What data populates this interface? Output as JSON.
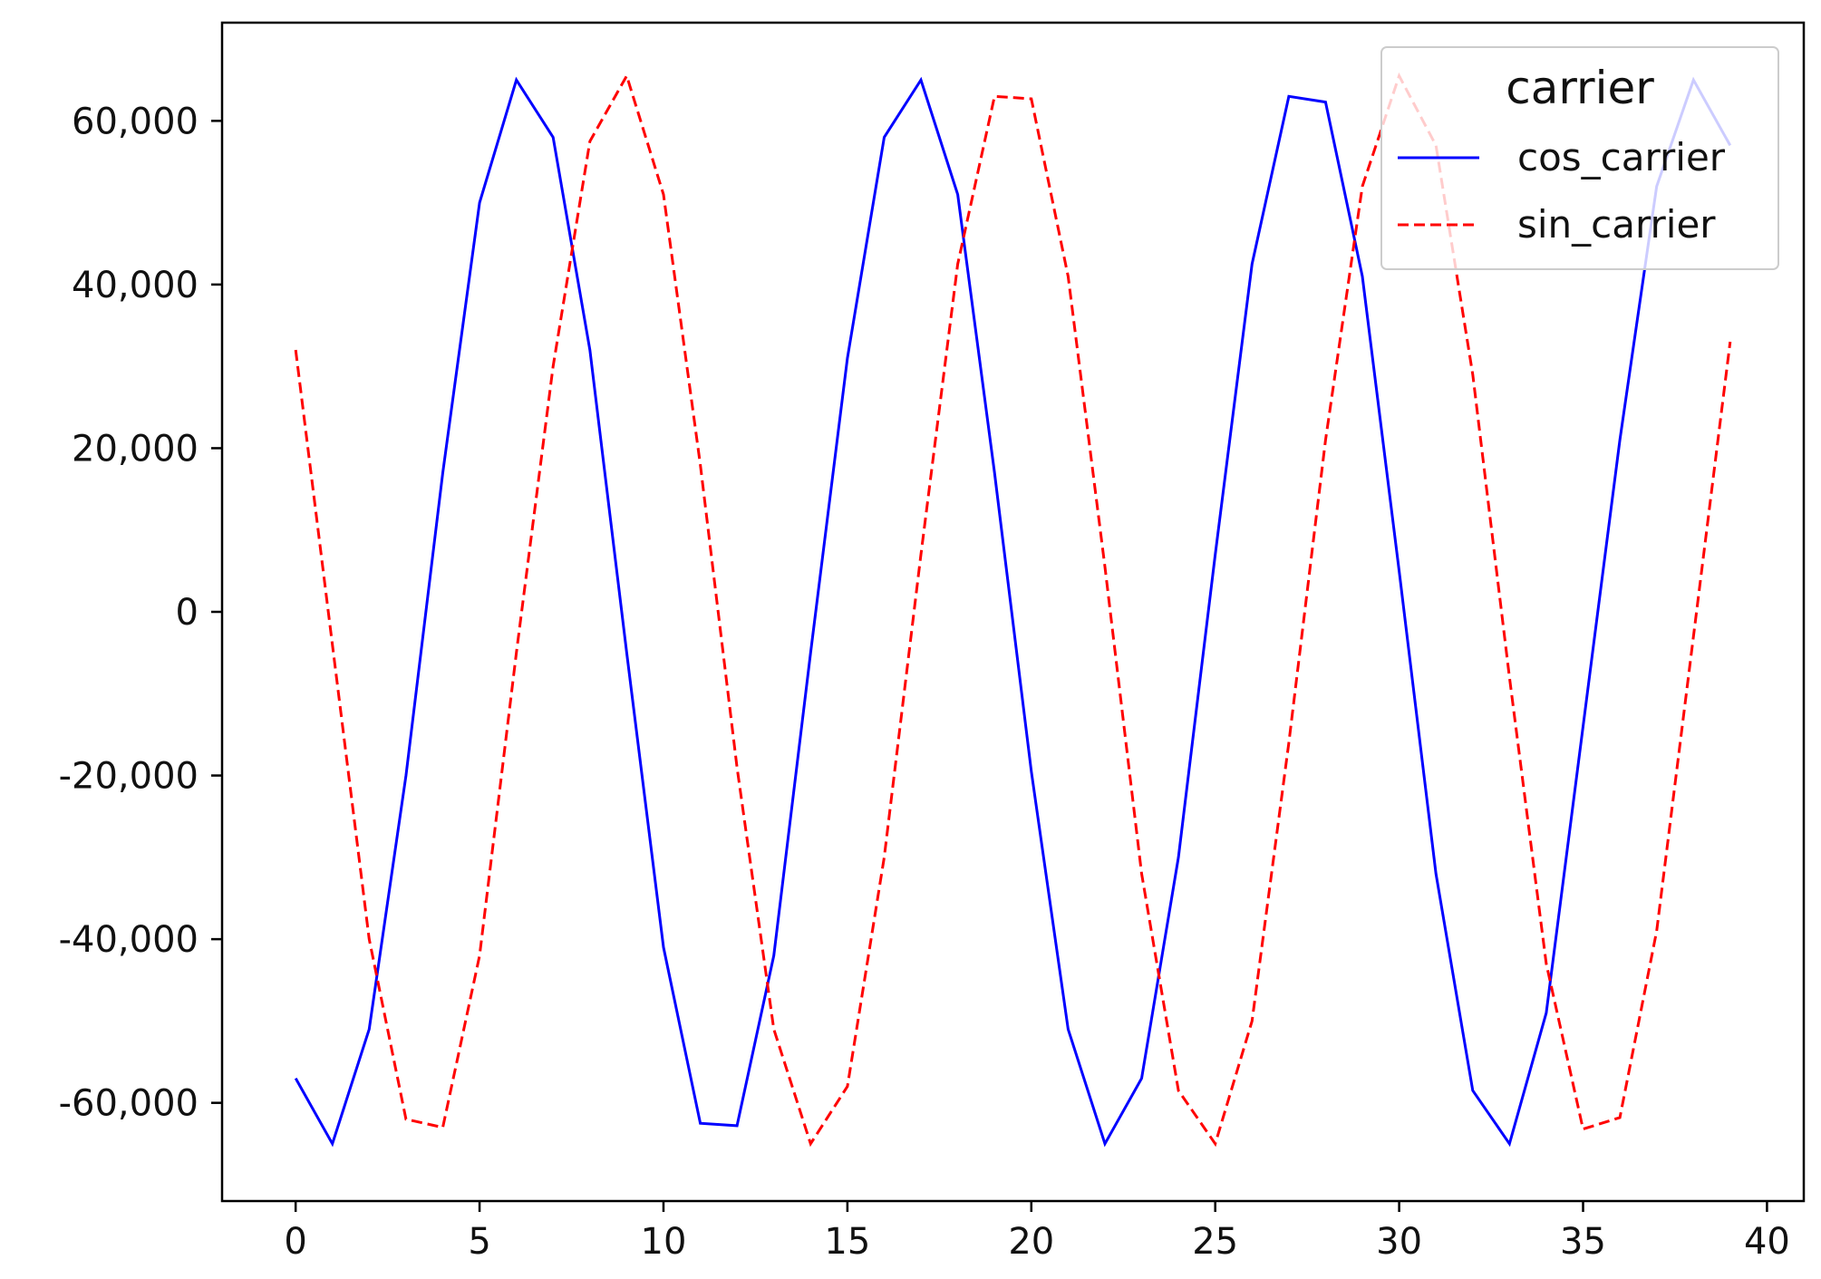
{
  "chart_data": {
    "type": "line",
    "title": "",
    "xlabel": "",
    "ylabel": "",
    "x": [
      0,
      1,
      2,
      3,
      4,
      5,
      6,
      7,
      8,
      9,
      10,
      11,
      12,
      13,
      14,
      15,
      16,
      17,
      18,
      19,
      20,
      21,
      22,
      23,
      24,
      25,
      26,
      27,
      28,
      29,
      30,
      31,
      32,
      33,
      34,
      35,
      36,
      37,
      38,
      39
    ],
    "series": [
      {
        "name": "cos_carrier",
        "color": "#0000ff",
        "style": "solid",
        "values": [
          -57000,
          -65000,
          -51000,
          -20000,
          17000,
          50000,
          65000,
          58000,
          32000,
          -5000,
          -41000,
          -62500,
          -62800,
          -42000,
          -5000,
          31000,
          58000,
          65000,
          51000,
          17000,
          -19500,
          -51000,
          -65000,
          -57000,
          -30000,
          7000,
          42500,
          63000,
          62300,
          41000,
          5000,
          -32000,
          -58500,
          -65000,
          -49000,
          -14000,
          21000,
          52000,
          65000,
          57000
        ]
      },
      {
        "name": "sin_carrier",
        "color": "#ff0000",
        "style": "dashed",
        "values": [
          32000,
          -4000,
          -40000,
          -62000,
          -63000,
          -42000,
          -5000,
          30000,
          57500,
          65500,
          51000,
          18000,
          -19000,
          -51000,
          -65000,
          -58000,
          -30000,
          7000,
          42500,
          63000,
          62700,
          41000,
          5500,
          -32000,
          -58500,
          -65000,
          -50000,
          -16000,
          21000,
          52000,
          65500,
          57000,
          29000,
          -8000,
          -43000,
          -63200,
          -61800,
          -39000,
          -3000,
          33000
        ]
      }
    ],
    "xticks": [
      "0",
      "5",
      "10",
      "15",
      "20",
      "25",
      "30",
      "35",
      "40"
    ],
    "yticks": [
      "60,000",
      "40,000",
      "20,000",
      "0",
      "-20,000",
      "-40,000",
      "-60,000"
    ],
    "xlim": [
      -2,
      41
    ],
    "ylim": [
      -72000,
      72000
    ],
    "grid": false,
    "legend": {
      "title": "carrier",
      "placement": "top-right",
      "entries": [
        "cos_carrier",
        "sin_carrier"
      ]
    }
  }
}
